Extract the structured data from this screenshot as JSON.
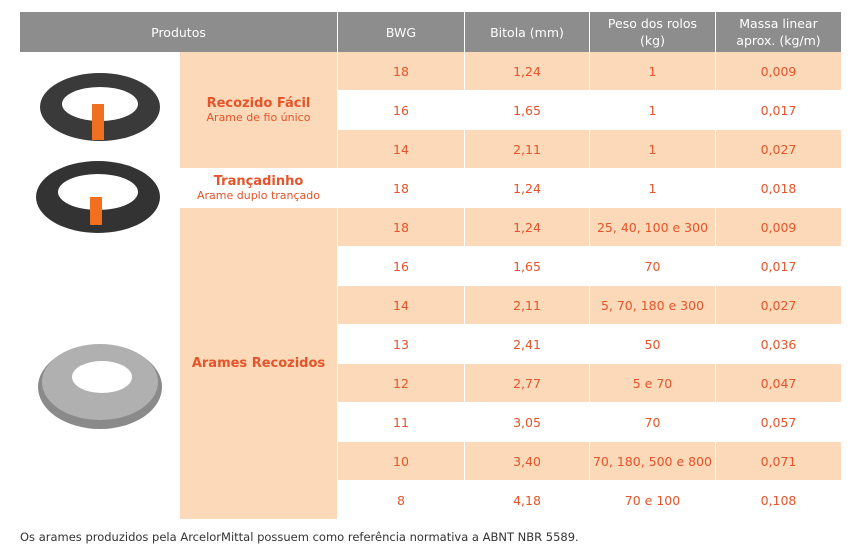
{
  "table": {
    "header": [
      [
        "Produtos"
      ],
      [
        "BWG"
      ],
      [
        "Bitola (mm)"
      ],
      [
        "Peso dos rolos",
        "(kg)"
      ],
      [
        "Massa linear",
        "aprox. (kg/m)"
      ]
    ],
    "groups": [
      {
        "name": "Recozido Fácil",
        "subtitle": "Arame de fio único",
        "rows": [
          [
            "18",
            "1,24",
            "1",
            "0,009"
          ],
          [
            "16",
            "1,65",
            "1",
            "0,017"
          ],
          [
            "14",
            "2,11",
            "1",
            "0,027"
          ]
        ]
      },
      {
        "name": "Trançadinho",
        "subtitle": "Arame duplo trançado",
        "rows": [
          [
            "18",
            "1,24",
            "1",
            "0,018"
          ]
        ]
      },
      {
        "name": "Arames Recozidos",
        "rows": [
          [
            "18",
            "1,24",
            "25, 40, 100 e 300",
            "0,009"
          ],
          [
            "16",
            "1,65",
            "70",
            "0,017"
          ],
          [
            "14",
            "2,11",
            "5, 70, 180 e 300",
            "0,027"
          ],
          [
            "13",
            "2,41",
            "50",
            "0,036"
          ],
          [
            "12",
            "2,77",
            "5 e 70",
            "0,047"
          ],
          [
            "11",
            "3,05",
            "70",
            "0,057"
          ],
          [
            "10",
            "3,40",
            "70, 180, 500 e 800",
            "0,071"
          ],
          [
            "8",
            "4,18",
            "70 e 100",
            "0,108"
          ]
        ]
      }
    ]
  },
  "footnote": "Os arames produzidos pela ArcelorMittal possuem como referência normativa a ABNT NBR 5589."
}
